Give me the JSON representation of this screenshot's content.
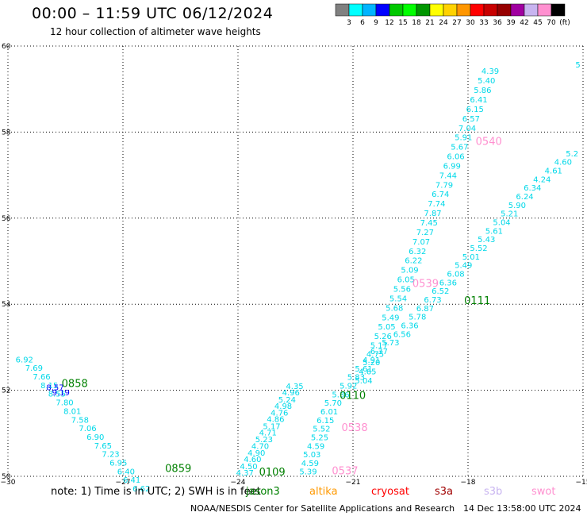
{
  "header": {
    "title": "00:00  –  11:59 UTC 06/12/2024",
    "subtitle": "12 hour collection of altimeter wave heights"
  },
  "footer": {
    "note": "note:  1) Time is in UTC; 2) SWH is in feet",
    "missions": [
      {
        "label": "jason3",
        "color": "#008000"
      },
      {
        "label": "altika",
        "color": "#ff9900"
      },
      {
        "label": "cryosat",
        "color": "#ff0000"
      },
      {
        "label": "s3a",
        "color": "#a00000"
      },
      {
        "label": "s3b",
        "color": "#c8b4f0"
      },
      {
        "label": "swot",
        "color": "#ff90d0"
      }
    ],
    "credit": "NOAA/NESDIS Center for Satellite Applications and Research",
    "generated": "14 Dec 13:58:00 UTC 2024"
  },
  "colorbar": {
    "colors": [
      "#808080",
      "#00ffff",
      "#00b4ff",
      "#0000ff",
      "#00c800",
      "#00ff00",
      "#009600",
      "#ffff00",
      "#ffd200",
      "#ff9600",
      "#ff0000",
      "#c80000",
      "#960000",
      "#a000a0",
      "#c8b4f0",
      "#ff90d0",
      "#000000"
    ],
    "labels": [
      "3",
      "6",
      "9",
      "12",
      "15",
      "18",
      "21",
      "24",
      "27",
      "30",
      "33",
      "36",
      "39",
      "42",
      "45",
      "70",
      "(ft)"
    ]
  },
  "chart_data": {
    "type": "scatter",
    "title": "00:00  –  11:59 UTC 06/12/2024",
    "subtitle": "12 hour collection of altimeter wave heights",
    "xlim": [
      -30,
      -15
    ],
    "ylim": [
      50,
      60
    ],
    "xticks": [
      "−30",
      "−27",
      "−24",
      "−21",
      "−18",
      "−15"
    ],
    "yticks": [
      "50",
      "52",
      "54",
      "56",
      "58",
      "60"
    ],
    "grid": true,
    "tracks": [
      {
        "color": "#00d8e8",
        "points": [
          [
            -20.95,
            52.16,
            "5.04"
          ],
          [
            -20.85,
            52.37,
            "4.65"
          ],
          [
            -20.75,
            52.58,
            "5.20"
          ],
          [
            -20.65,
            52.78,
            "4.75"
          ],
          [
            -20.55,
            52.98,
            "5.17"
          ],
          [
            -20.45,
            53.19,
            "5.26"
          ],
          [
            -20.35,
            53.41,
            "5.05"
          ],
          [
            -20.25,
            53.63,
            "5.49"
          ],
          [
            -20.15,
            53.85,
            "5.68"
          ],
          [
            -20.05,
            54.07,
            "5.54"
          ],
          [
            -19.95,
            54.29,
            "5.56"
          ],
          [
            -19.85,
            54.51,
            "6.05"
          ],
          [
            -19.75,
            54.73,
            "5.09"
          ],
          [
            -19.65,
            54.95,
            "6.22"
          ],
          [
            -19.55,
            55.17,
            "6.32"
          ],
          [
            -19.45,
            55.39,
            "7.07"
          ],
          [
            -19.35,
            55.61,
            "7.27"
          ],
          [
            -19.25,
            55.83,
            "7.45"
          ],
          [
            -19.15,
            56.05,
            "7.87"
          ],
          [
            -19.05,
            56.27,
            "7.74"
          ],
          [
            -18.95,
            56.49,
            "6.74"
          ],
          [
            -18.85,
            56.71,
            "7.79"
          ],
          [
            -18.75,
            56.93,
            "7.44"
          ],
          [
            -18.65,
            57.15,
            "6.99"
          ],
          [
            -18.55,
            57.37,
            "6.06"
          ],
          [
            -18.45,
            57.59,
            "5.67"
          ],
          [
            -18.35,
            57.81,
            "5.91"
          ],
          [
            -18.25,
            58.03,
            "7.04"
          ],
          [
            -18.15,
            58.25,
            "6.57"
          ],
          [
            -18.05,
            58.47,
            "6.15"
          ],
          [
            -17.95,
            58.69,
            "6.41"
          ],
          [
            -17.85,
            58.91,
            "5.86"
          ],
          [
            -17.75,
            59.13,
            "5.40"
          ],
          [
            -17.65,
            59.35,
            "4.39"
          ],
          [
            -15.2,
            59.5,
            "5"
          ]
        ]
      },
      {
        "color": "#00d8e8",
        "points": [
          [
            -24.05,
            50.02,
            "4.37"
          ],
          [
            -23.95,
            50.17,
            "4.50"
          ],
          [
            -23.85,
            50.33,
            "4.60"
          ],
          [
            -23.75,
            50.48,
            "4.90"
          ],
          [
            -23.65,
            50.64,
            "4.70"
          ],
          [
            -23.55,
            50.79,
            "5.23"
          ],
          [
            -23.45,
            50.95,
            "4.71"
          ],
          [
            -23.35,
            51.1,
            "5.17"
          ],
          [
            -23.25,
            51.26,
            "4.86"
          ],
          [
            -23.15,
            51.41,
            "4.76"
          ],
          [
            -23.05,
            51.57,
            "4.98"
          ],
          [
            -22.95,
            51.72,
            "5.24"
          ],
          [
            -22.85,
            51.88,
            "4.96"
          ],
          [
            -22.75,
            52.03,
            "4.35"
          ]
        ]
      },
      {
        "color": "#00d8e8",
        "points": [
          [
            -22.4,
            50.05,
            "5.39"
          ],
          [
            -22.35,
            50.24,
            "4.59"
          ],
          [
            -22.3,
            50.44,
            "5.03"
          ],
          [
            -22.2,
            50.64,
            "4.59"
          ],
          [
            -22.1,
            50.84,
            "5.25"
          ],
          [
            -22.05,
            51.04,
            "5.52"
          ],
          [
            -21.95,
            51.24,
            "6.15"
          ],
          [
            -21.85,
            51.44,
            "6.01"
          ],
          [
            -21.75,
            51.64,
            "5.70"
          ],
          [
            -21.55,
            51.84,
            "5.36"
          ],
          [
            -21.35,
            52.04,
            "5.92"
          ],
          [
            -21.15,
            52.24,
            "5.83"
          ],
          [
            -20.95,
            52.44,
            "5.61"
          ],
          [
            -20.75,
            52.64,
            "4.91"
          ],
          [
            -20.55,
            52.84,
            "6.37"
          ],
          [
            -20.25,
            53.04,
            "5.73"
          ],
          [
            -19.95,
            53.24,
            "6.56"
          ],
          [
            -19.75,
            53.44,
            "6.36"
          ],
          [
            -19.55,
            53.64,
            "5.78"
          ],
          [
            -19.35,
            53.84,
            "6.87"
          ],
          [
            -19.15,
            54.04,
            "6.73"
          ],
          [
            -18.95,
            54.24,
            "6.52"
          ],
          [
            -18.75,
            54.44,
            "6.36"
          ],
          [
            -18.55,
            54.64,
            "6.08"
          ],
          [
            -18.35,
            54.84,
            "5.49"
          ],
          [
            -18.15,
            55.04,
            "5.01"
          ],
          [
            -17.95,
            55.24,
            "5.52"
          ],
          [
            -17.75,
            55.44,
            "5.43"
          ],
          [
            -17.55,
            55.64,
            "5.61"
          ],
          [
            -17.35,
            55.84,
            "5.04"
          ],
          [
            -17.15,
            56.04,
            "5.21"
          ],
          [
            -16.95,
            56.24,
            "5.90"
          ],
          [
            -16.75,
            56.44,
            "6.24"
          ],
          [
            -16.55,
            56.64,
            "6.34"
          ],
          [
            -16.3,
            56.84,
            "4.24"
          ],
          [
            -16.0,
            57.04,
            "4.61"
          ],
          [
            -15.75,
            57.24,
            "4.60"
          ],
          [
            -15.45,
            57.44,
            "5.2"
          ]
        ]
      },
      {
        "color": "#00d8e8",
        "points": [
          [
            -29.8,
            52.65,
            "6.92"
          ],
          [
            -29.55,
            52.45,
            "7.69"
          ],
          [
            -29.35,
            52.25,
            "7.66"
          ],
          [
            -29.15,
            52.05,
            "8.15"
          ],
          [
            -28.95,
            51.85,
            "8.55"
          ],
          [
            -28.75,
            51.65,
            "7.80"
          ],
          [
            -28.55,
            51.45,
            "8.01"
          ],
          [
            -28.35,
            51.25,
            "7.58"
          ],
          [
            -28.15,
            51.05,
            "7.06"
          ],
          [
            -27.95,
            50.85,
            "6.90"
          ],
          [
            -27.75,
            50.65,
            "7.65"
          ],
          [
            -27.55,
            50.45,
            "7.23"
          ],
          [
            -27.35,
            50.25,
            "6.95"
          ],
          [
            -27.15,
            50.05,
            "6.40"
          ],
          [
            -27.0,
            49.85,
            "6.41"
          ],
          [
            -26.75,
            49.65,
            "6.62"
          ]
        ]
      }
    ],
    "extra_points": [
      {
        "x": -29.0,
        "y": 52.0,
        "label": "8.57",
        "color": "#0000ff"
      },
      {
        "x": -28.85,
        "y": 51.88,
        "label": "9.19",
        "color": "#0000ff"
      }
    ],
    "pass_labels": [
      {
        "x": -28.6,
        "y": 52.08,
        "label": "0858",
        "color": "#008000"
      },
      {
        "x": -25.9,
        "y": 50.1,
        "label": "0859",
        "color": "#008000"
      },
      {
        "x": -23.45,
        "y": 50.02,
        "label": "0109",
        "color": "#008000"
      },
      {
        "x": -21.35,
        "y": 51.8,
        "label": "0110",
        "color": "#008000"
      },
      {
        "x": -18.1,
        "y": 54.0,
        "label": "0111",
        "color": "#008000"
      },
      {
        "x": -21.3,
        "y": 51.05,
        "label": "0538",
        "color": "#ff90d0"
      },
      {
        "x": -21.55,
        "y": 50.05,
        "label": "0537",
        "color": "#ff90d0"
      },
      {
        "x": -19.45,
        "y": 54.4,
        "label": "0539",
        "color": "#ff90d0"
      },
      {
        "x": -17.8,
        "y": 57.7,
        "label": "0540",
        "color": "#ff90d0"
      }
    ]
  }
}
